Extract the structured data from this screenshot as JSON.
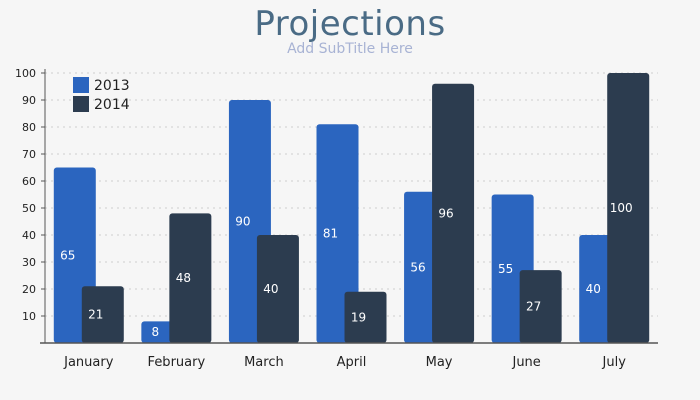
{
  "chart_data": {
    "type": "bar",
    "title": "Projections",
    "subtitle": "Add SubTitle Here",
    "categories": [
      "January",
      "February",
      "March",
      "April",
      "May",
      "June",
      "July"
    ],
    "series": [
      {
        "name": "2013",
        "color": "#2b65bf",
        "values": [
          65,
          8,
          90,
          81,
          56,
          55,
          40
        ]
      },
      {
        "name": "2014",
        "color": "#2c3c4f",
        "values": [
          21,
          48,
          40,
          19,
          96,
          27,
          100
        ]
      }
    ],
    "yticks": [
      "10",
      "20",
      "30",
      "40",
      "50",
      "60",
      "70",
      "80",
      "90",
      "100"
    ],
    "ylim": [
      0,
      100
    ],
    "grid": true,
    "legend_position": "top-left",
    "xlabel": "",
    "ylabel": ""
  }
}
